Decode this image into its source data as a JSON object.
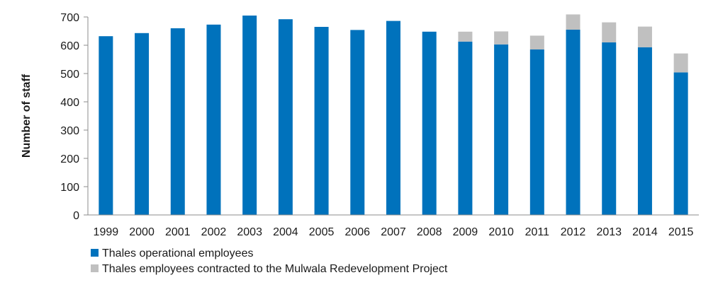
{
  "chart_data": {
    "type": "bar",
    "stacked": true,
    "categories": [
      "1999",
      "2000",
      "2001",
      "2002",
      "2003",
      "2004",
      "2005",
      "2006",
      "2007",
      "2008",
      "2009",
      "2010",
      "2011",
      "2012",
      "2013",
      "2014",
      "2015"
    ],
    "series": [
      {
        "name": "Thales operational employees",
        "color": "#0072bc",
        "values": [
          632,
          643,
          660,
          673,
          705,
          692,
          665,
          654,
          686,
          648,
          613,
          603,
          585,
          655,
          610,
          593,
          504
        ]
      },
      {
        "name": "Thales employees contracted to the Mulwala Redevelopment Project",
        "color": "#c0c0c0",
        "values": [
          0,
          0,
          0,
          0,
          0,
          0,
          0,
          0,
          0,
          0,
          35,
          46,
          49,
          54,
          71,
          73,
          67
        ]
      }
    ],
    "title": "",
    "xlabel": "",
    "ylabel": "Number of staff",
    "ylim": [
      0,
      700
    ],
    "yticks": [
      "0",
      "100",
      "200",
      "300",
      "400",
      "500",
      "600",
      "700"
    ],
    "grid": false,
    "legend": "bottom-left"
  }
}
